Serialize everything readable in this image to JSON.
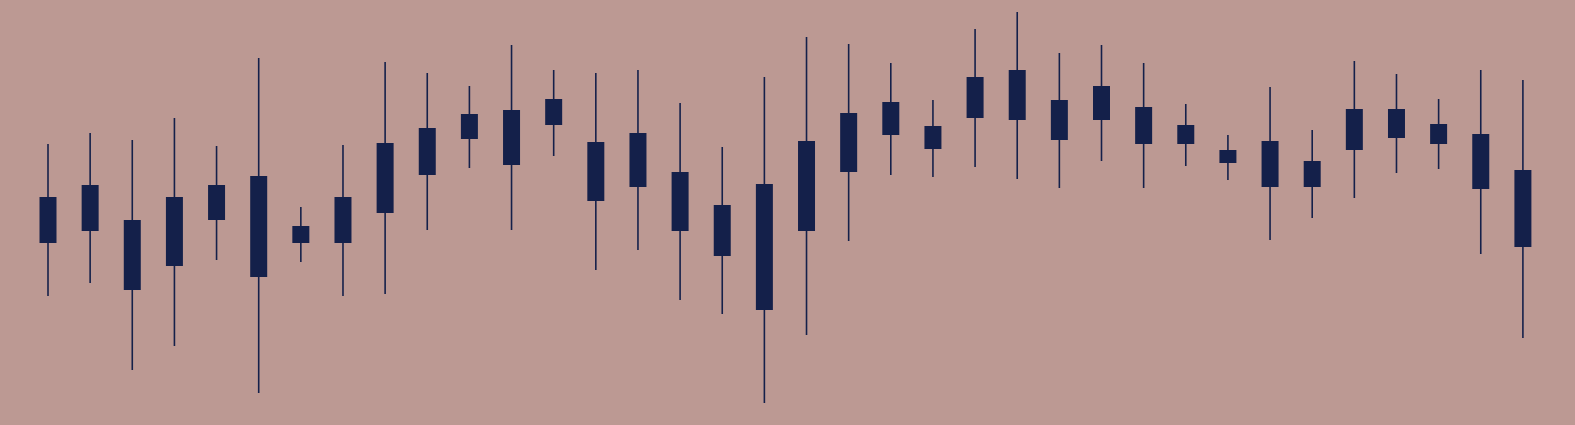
{
  "colors": {
    "background": "#bc9993",
    "candle": "#14204a"
  },
  "chart_data": {
    "type": "candlestick",
    "title": "",
    "xlabel": "",
    "ylabel": "",
    "grid": false,
    "legend": "none",
    "axes_visible": false,
    "ylim": [
      0,
      425
    ],
    "candles": [
      {
        "open": 182,
        "close": 228,
        "high": 281,
        "low": 129
      },
      {
        "open": 194,
        "close": 240,
        "high": 292,
        "low": 142
      },
      {
        "open": 135,
        "close": 205,
        "high": 285,
        "low": 55
      },
      {
        "open": 159,
        "close": 228,
        "high": 307,
        "low": 79
      },
      {
        "open": 205,
        "close": 240,
        "high": 279,
        "low": 165
      },
      {
        "open": 148,
        "close": 249,
        "high": 367,
        "low": 32
      },
      {
        "open": 182,
        "close": 199,
        "high": 218,
        "low": 163
      },
      {
        "open": 182,
        "close": 228,
        "high": 280,
        "low": 129
      },
      {
        "open": 212,
        "close": 282,
        "high": 363,
        "low": 131
      },
      {
        "open": 250,
        "close": 297,
        "high": 352,
        "low": 195
      },
      {
        "open": 286,
        "close": 311,
        "high": 339,
        "low": 257
      },
      {
        "open": 260,
        "close": 315,
        "high": 380,
        "low": 195
      },
      {
        "open": 300,
        "close": 326,
        "high": 355,
        "low": 269
      },
      {
        "open": 224,
        "close": 283,
        "high": 352,
        "low": 155
      },
      {
        "open": 238,
        "close": 292,
        "high": 355,
        "low": 175
      },
      {
        "open": 194,
        "close": 253,
        "high": 322,
        "low": 125
      },
      {
        "open": 169,
        "close": 220,
        "high": 278,
        "low": 111
      },
      {
        "open": 115,
        "close": 241,
        "high": 348,
        "low": 22
      },
      {
        "open": 194,
        "close": 284,
        "high": 388,
        "low": 90
      },
      {
        "open": 253,
        "close": 312,
        "high": 381,
        "low": 184
      },
      {
        "open": 290,
        "close": 323,
        "high": 362,
        "low": 250
      },
      {
        "open": 276,
        "close": 299,
        "high": 325,
        "low": 248
      },
      {
        "open": 307,
        "close": 348,
        "high": 396,
        "low": 258
      },
      {
        "open": 305,
        "close": 355,
        "high": 413,
        "low": 246
      },
      {
        "open": 285,
        "close": 325,
        "high": 372,
        "low": 237
      },
      {
        "open": 305,
        "close": 339,
        "high": 380,
        "low": 264
      },
      {
        "open": 281,
        "close": 318,
        "high": 362,
        "low": 237
      },
      {
        "open": 281,
        "close": 300,
        "high": 321,
        "low": 259
      },
      {
        "open": 262,
        "close": 275,
        "high": 290,
        "low": 245
      },
      {
        "open": 238,
        "close": 284,
        "high": 338,
        "low": 185
      },
      {
        "open": 238,
        "close": 264,
        "high": 295,
        "low": 207
      },
      {
        "open": 275,
        "close": 316,
        "high": 364,
        "low": 227
      },
      {
        "open": 287,
        "close": 316,
        "high": 351,
        "low": 252
      },
      {
        "open": 281,
        "close": 301,
        "high": 326,
        "low": 256
      },
      {
        "open": 236,
        "close": 291,
        "high": 355,
        "low": 171
      },
      {
        "open": 178,
        "close": 255,
        "high": 345,
        "low": 87
      }
    ]
  }
}
